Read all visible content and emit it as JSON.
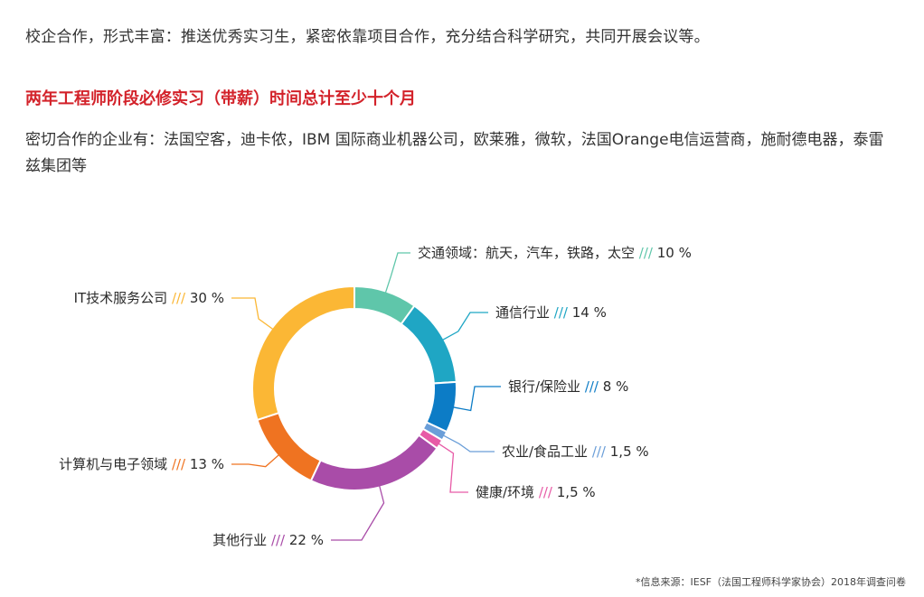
{
  "intro_text": "校企合作，形式丰富：推送优秀实习生，紧密依靠项目合作，充分结合科学研究，共同开展会议等。",
  "heading": "两年工程师阶段必修实习（带薪）时间总计至少十个月",
  "partners_text": "密切合作的企业有：法国空客，迪卡侬，IBM 国际商业机器公司，欧莱雅，微软，法国Orange电信运营商，施耐德电器，泰雷兹集团等",
  "source_note": "*信息来源：IESF（法国工程师科学家协会）2018年调查问卷",
  "chart_data": {
    "type": "pie",
    "style": "donut",
    "label_separator": "///",
    "slices": [
      {
        "label": "交通领域：航天，汽车，铁路，太空",
        "value": 10,
        "value_text": "10 %",
        "color": "#5fc6aa"
      },
      {
        "label": "通信行业",
        "value": 14,
        "value_text": "14 %",
        "color": "#1fa6c4"
      },
      {
        "label": "银行/保险业",
        "value": 8,
        "value_text": "8 %",
        "color": "#0c7cc6"
      },
      {
        "label": "农业/食品工业",
        "value": 1.5,
        "value_text": "1,5 %",
        "color": "#6a9ed8"
      },
      {
        "label": "健康/环境",
        "value": 1.5,
        "value_text": "1,5 %",
        "color": "#e75aa6"
      },
      {
        "label": "其他行业",
        "value": 22,
        "value_text": "22 %",
        "color": "#a94ca8"
      },
      {
        "label": "计算机与电子领域",
        "value": 13,
        "value_text": "13 %",
        "color": "#ef7321"
      },
      {
        "label": "IT技术服务公司",
        "value": 30,
        "value_text": "30 %",
        "color": "#fbb735"
      }
    ]
  }
}
